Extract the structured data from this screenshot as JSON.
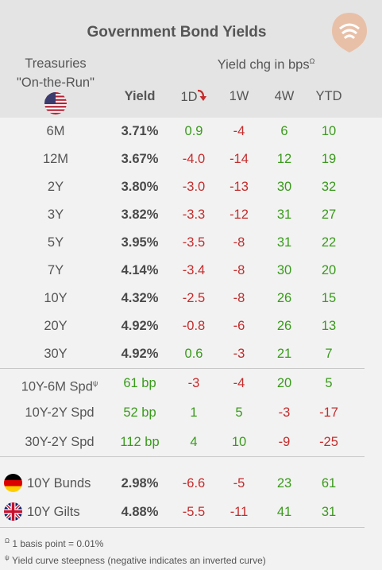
{
  "title": "Government Bond Yields",
  "header": {
    "treasuries_line1": "Treasuries",
    "treasuries_line2": "\"On-the-Run\"",
    "yield_chg": "Yield chg in bps",
    "yield_chg_marker": "Ω",
    "col_yield": "Yield",
    "col_1d": "1D",
    "col_1w": "1W",
    "col_4w": "4W",
    "col_ytd": "YTD"
  },
  "treasury_rows": [
    {
      "label": "6M",
      "yield": "3.71%",
      "d1": "0.9",
      "w1": "-4",
      "w4": "6",
      "ytd": "10"
    },
    {
      "label": "12M",
      "yield": "3.67%",
      "d1": "-4.0",
      "w1": "-14",
      "w4": "12",
      "ytd": "19"
    },
    {
      "label": "2Y",
      "yield": "3.80%",
      "d1": "-3.0",
      "w1": "-13",
      "w4": "30",
      "ytd": "32"
    },
    {
      "label": "3Y",
      "yield": "3.82%",
      "d1": "-3.3",
      "w1": "-12",
      "w4": "31",
      "ytd": "27"
    },
    {
      "label": "5Y",
      "yield": "3.95%",
      "d1": "-3.5",
      "w1": "-8",
      "w4": "31",
      "ytd": "22"
    },
    {
      "label": "7Y",
      "yield": "4.14%",
      "d1": "-3.4",
      "w1": "-8",
      "w4": "30",
      "ytd": "20"
    },
    {
      "label": "10Y",
      "yield": "4.32%",
      "d1": "-2.5",
      "w1": "-8",
      "w4": "26",
      "ytd": "15"
    },
    {
      "label": "20Y",
      "yield": "4.92%",
      "d1": "-0.8",
      "w1": "-6",
      "w4": "26",
      "ytd": "13"
    },
    {
      "label": "30Y",
      "yield": "4.92%",
      "d1": "0.6",
      "w1": "-3",
      "w4": "21",
      "ytd": "7"
    }
  ],
  "spread_rows": [
    {
      "label": "10Y-6M Spd",
      "marker": "ψ",
      "yield": "61 bp",
      "d1": "-3",
      "w1": "-4",
      "w4": "20",
      "ytd": "5"
    },
    {
      "label": "10Y-2Y Spd",
      "marker": "",
      "yield": "52 bp",
      "d1": "1",
      "w1": "5",
      "w4": "-3",
      "ytd": "-17"
    },
    {
      "label": "30Y-2Y Spd",
      "marker": "",
      "yield": "112 bp",
      "d1": "4",
      "w1": "10",
      "w4": "-9",
      "ytd": "-25"
    }
  ],
  "intl_rows": [
    {
      "label": "10Y Bunds",
      "flag": "germany-flag-icon",
      "yield": "2.98%",
      "d1": "-6.6",
      "w1": "-5",
      "w4": "23",
      "ytd": "61"
    },
    {
      "label": "10Y Gilts",
      "flag": "uk-flag-icon",
      "yield": "4.88%",
      "d1": "-5.5",
      "w1": "-11",
      "w4": "41",
      "ytd": "31"
    }
  ],
  "footnotes": {
    "f1_marker": "Ω",
    "f1_text": "1 basis point = 0.01%",
    "f2_marker": "ψ",
    "f2_text": "Yield curve steepness (negative indicates an inverted curve)"
  },
  "colors": {
    "positive": "#3a9a1c",
    "negative": "#c42c2c",
    "header_bg": "#e4e4e4",
    "body_bg": "#f2f2f2",
    "logo": "#e8c0a8",
    "arrow": "#c42c2c"
  }
}
